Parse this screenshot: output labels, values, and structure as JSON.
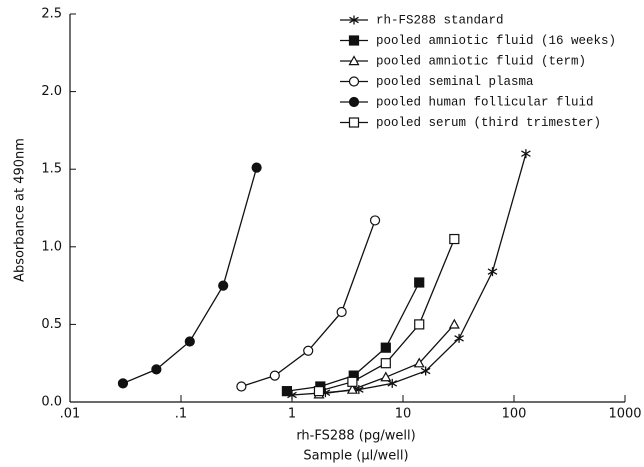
{
  "chart_data": {
    "type": "line",
    "log_x": true,
    "x_label": "rh-FS288 (pg/well)",
    "x_label_2": "Sample (µl/well)",
    "y_label": "Absorbance at 490nm",
    "xlim": [
      0.01,
      1000
    ],
    "ylim": [
      0,
      2.5
    ],
    "xticks": [
      {
        "value": 0.01,
        "label": ".01"
      },
      {
        "value": 0.1,
        "label": ".1"
      },
      1,
      10,
      100,
      1000
    ],
    "yticks": [
      {
        "value": 0,
        "label": "0.0"
      },
      {
        "value": 0.5,
        "label": "0.5"
      },
      {
        "value": 1,
        "label": "1.0"
      },
      {
        "value": 1.5,
        "label": "1.5"
      },
      {
        "value": 2,
        "label": "2.0"
      },
      {
        "value": 2.5,
        "label": "2.5"
      }
    ],
    "legend_position": "upper right",
    "series": [
      {
        "name": "rh-FS288 standard",
        "color": "#111111",
        "marker": "asterisk",
        "x": [
          1,
          2,
          4,
          8,
          16,
          32,
          64,
          128
        ],
        "values": [
          0.045,
          0.06,
          0.08,
          0.12,
          0.2,
          0.41,
          0.84,
          1.6
        ]
      },
      {
        "name": "pooled amniotic fluid (16 weeks)",
        "color": "#111111",
        "marker": "filled-square",
        "x": [
          0.9,
          1.8,
          3.6,
          7,
          14
        ],
        "values": [
          0.07,
          0.1,
          0.17,
          0.35,
          0.77
        ]
      },
      {
        "name": "pooled amniotic fluid (term)",
        "color": "#111111",
        "marker": "open-triangle",
        "x": [
          1.75,
          3.5,
          7,
          14,
          29
        ],
        "values": [
          0.05,
          0.08,
          0.16,
          0.25,
          0.5
        ]
      },
      {
        "name": "pooled seminal plasma",
        "color": "#111111",
        "marker": "open-circle",
        "x": [
          0.35,
          0.7,
          1.4,
          2.8,
          5.6
        ],
        "values": [
          0.1,
          0.17,
          0.33,
          0.58,
          1.17
        ]
      },
      {
        "name": "pooled human follicular fluid",
        "color": "#111111",
        "marker": "filled-circle",
        "x": [
          0.03,
          0.06,
          0.12,
          0.24,
          0.48
        ],
        "values": [
          0.12,
          0.21,
          0.39,
          0.75,
          1.51
        ]
      },
      {
        "name": "pooled serum (third trimester)",
        "color": "#111111",
        "marker": "open-square",
        "x": [
          1.75,
          3.5,
          7,
          14,
          29
        ],
        "values": [
          0.07,
          0.13,
          0.25,
          0.5,
          1.05
        ]
      }
    ]
  }
}
